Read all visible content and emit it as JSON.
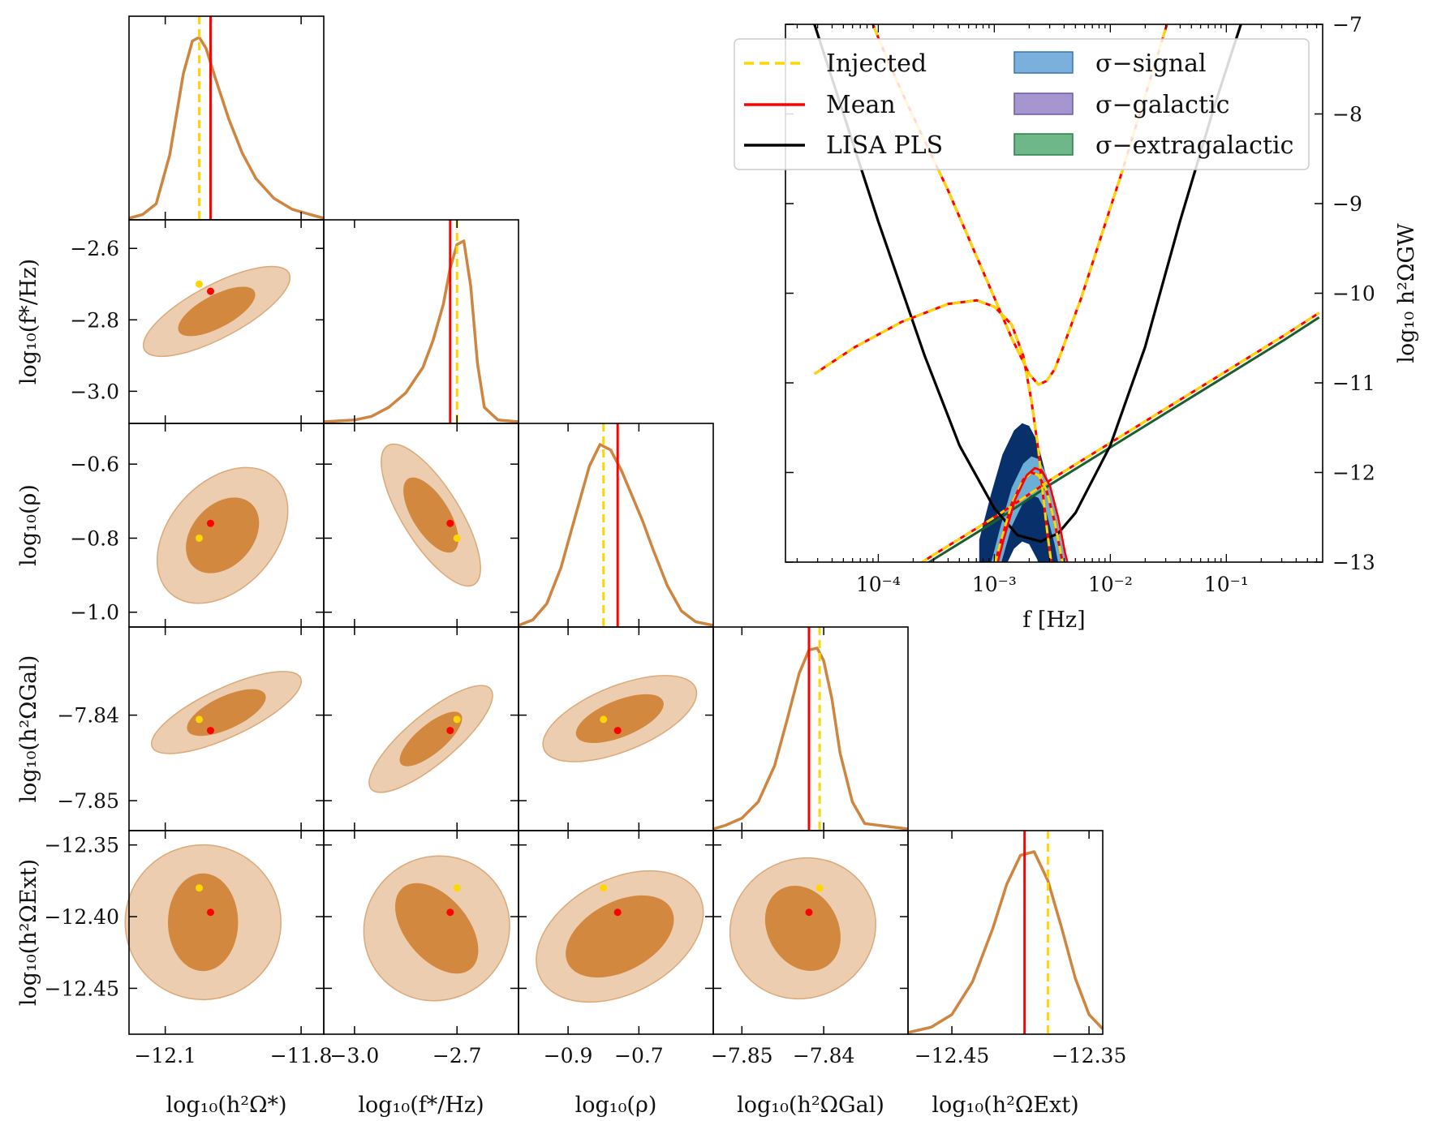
{
  "chart_data": [
    {
      "type": "corner",
      "title": "",
      "parameters": [
        {
          "key": "omega_star",
          "label": "log₁₀(h²Ω*)",
          "range": [
            -12.18,
            -11.75
          ],
          "ticks": [
            -12.1,
            -11.8
          ],
          "tick_labels": [
            "−12.1",
            "−11.8"
          ],
          "injected": -12.025,
          "mean": -12.0
        },
        {
          "key": "f_star",
          "label": "log₁₀(f*/Hz)",
          "range": [
            -3.09,
            -2.52
          ],
          "ticks": [
            -3.0,
            -2.7
          ],
          "tick_labels": [
            "−3.0",
            "−2.7"
          ],
          "y_ticks": [
            -2.6,
            -2.8,
            -3.0
          ],
          "y_tick_labels": [
            "−2.6",
            "−2.8",
            "−3.0"
          ],
          "injected": -2.7,
          "mean": -2.72
        },
        {
          "key": "rho",
          "label": "log₁₀(ρ)",
          "range": [
            -1.04,
            -0.49
          ],
          "ticks": [
            -0.9,
            -0.7
          ],
          "tick_labels": [
            "−0.9",
            "−0.7"
          ],
          "y_ticks": [
            -0.6,
            -0.8,
            -1.0
          ],
          "y_tick_labels": [
            "−0.6",
            "−0.8",
            "−1.0"
          ],
          "injected": -0.8,
          "mean": -0.76
        },
        {
          "key": "omega_gal",
          "label": "log₁₀(h²ΩGal)",
          "range": [
            -7.8535,
            -7.8297
          ],
          "ticks": [
            -7.85,
            -7.84
          ],
          "tick_labels": [
            "−7.85",
            "−7.84"
          ],
          "y_ticks": [
            -7.84,
            -7.85
          ],
          "y_tick_labels": [
            "−7.84",
            "−7.85"
          ],
          "injected": -7.8405,
          "mean": -7.8418
        },
        {
          "key": "omega_ext",
          "label": "log₁₀(h²ΩExt)",
          "range": [
            -12.482,
            -12.34
          ],
          "ticks": [
            -12.45,
            -12.35
          ],
          "tick_labels": [
            "−12.45",
            "−12.35"
          ],
          "y_ticks": [
            -12.35,
            -12.4,
            -12.45
          ],
          "y_tick_labels": [
            "−12.35",
            "−12.40",
            "−12.45"
          ],
          "injected": -12.38,
          "mean": -12.397
        }
      ],
      "marginals": [
        {
          "x": [
            -12.18,
            -12.15,
            -12.12,
            -12.09,
            -12.06,
            -12.04,
            -12.025,
            -12.01,
            -11.99,
            -11.96,
            -11.93,
            -11.9,
            -11.86,
            -11.82,
            -11.78,
            -11.75
          ],
          "density": [
            0.0,
            0.02,
            0.08,
            0.35,
            0.8,
            0.98,
            1.0,
            0.94,
            0.78,
            0.55,
            0.36,
            0.22,
            0.11,
            0.05,
            0.02,
            0.0
          ]
        },
        {
          "x": [
            -3.09,
            -3.0,
            -2.95,
            -2.9,
            -2.85,
            -2.8,
            -2.77,
            -2.74,
            -2.72,
            -2.7,
            -2.68,
            -2.66,
            -2.64,
            -2.62,
            -2.58,
            -2.52
          ],
          "density": [
            0.0,
            0.01,
            0.03,
            0.08,
            0.16,
            0.3,
            0.45,
            0.65,
            0.85,
            0.98,
            1.0,
            0.75,
            0.32,
            0.08,
            0.01,
            0.0
          ]
        },
        {
          "x": [
            -1.04,
            -1.0,
            -0.96,
            -0.92,
            -0.88,
            -0.84,
            -0.81,
            -0.78,
            -0.75,
            -0.72,
            -0.69,
            -0.66,
            -0.62,
            -0.58,
            -0.54,
            -0.49
          ],
          "density": [
            0.0,
            0.03,
            0.12,
            0.32,
            0.6,
            0.88,
            1.0,
            0.97,
            0.86,
            0.72,
            0.58,
            0.42,
            0.22,
            0.08,
            0.02,
            0.0
          ]
        },
        {
          "x": [
            -7.8535,
            -7.852,
            -7.85,
            -7.848,
            -7.846,
            -7.8445,
            -7.843,
            -7.8418,
            -7.8408,
            -7.84,
            -7.839,
            -7.838,
            -7.8365,
            -7.835,
            -7.8297
          ],
          "density": [
            0.0,
            0.02,
            0.06,
            0.15,
            0.35,
            0.6,
            0.86,
            0.99,
            1.0,
            0.93,
            0.72,
            0.42,
            0.15,
            0.03,
            0.0
          ]
        },
        {
          "x": [
            -12.482,
            -12.465,
            -12.45,
            -12.435,
            -12.42,
            -12.41,
            -12.4,
            -12.39,
            -12.38,
            -12.37,
            -12.36,
            -12.35,
            -12.34
          ],
          "density": [
            0.0,
            0.03,
            0.1,
            0.28,
            0.58,
            0.82,
            0.98,
            1.0,
            0.84,
            0.58,
            0.3,
            0.1,
            0.02
          ]
        }
      ]
    },
    {
      "type": "line",
      "title": "",
      "xlabel": "f [Hz]",
      "ylabel": "log₁₀ h²ΩGW",
      "xscale": "log",
      "xlim_log10": [
        -4.8,
        -0.17
      ],
      "ylim": [
        -13,
        -7
      ],
      "x_ticks_log10": [
        -4,
        -3,
        -2,
        -1
      ],
      "x_tick_labels": [
        "10⁻⁴",
        "10⁻³",
        "10⁻²",
        "10⁻¹"
      ],
      "y_ticks": [
        -7,
        -8,
        -9,
        -10,
        -11,
        -12,
        -13
      ],
      "y_tick_labels": [
        "−7",
        "−8",
        "−9",
        "−10",
        "−11",
        "−12",
        "−13"
      ],
      "legend_position": "top-right",
      "series": [
        {
          "name": "Injected",
          "style": "dashed",
          "color": "#FFD700"
        },
        {
          "name": "Mean",
          "style": "solid",
          "color": "#FF0000"
        },
        {
          "name": "LISA PLS",
          "style": "solid",
          "color": "#000000",
          "x_log10": [
            -4.8,
            -4.4,
            -4.0,
            -3.6,
            -3.3,
            -3.0,
            -2.8,
            -2.6,
            -2.45,
            -2.3,
            -2.0,
            -1.7,
            -1.4,
            -1.1,
            -0.85
          ],
          "y": [
            -6.0,
            -7.6,
            -9.2,
            -10.7,
            -11.7,
            -12.4,
            -12.7,
            -12.77,
            -12.68,
            -12.45,
            -11.7,
            -10.6,
            -9.2,
            -7.9,
            -6.9
          ]
        },
        {
          "name": "σ−signal",
          "style": "band",
          "color": "#5a9bd3"
        },
        {
          "name": "σ−galactic",
          "style": "band",
          "color": "#8e7cc3"
        },
        {
          "name": "σ−extragalactic",
          "style": "band",
          "color": "#4aa56a"
        }
      ],
      "curves": {
        "total_x_log10": [
          -4.2,
          -4.0,
          -3.8,
          -3.6,
          -3.4,
          -3.2,
          -3.0,
          -2.85,
          -2.7,
          -2.62,
          -2.55,
          -2.48,
          -2.42,
          -2.35,
          -2.25,
          -2.1,
          -1.9,
          -1.7,
          -1.5,
          -1.3,
          -1.1
        ],
        "total_y": [
          -6.5,
          -7.15,
          -7.75,
          -8.3,
          -8.85,
          -9.45,
          -10.05,
          -10.5,
          -10.9,
          -11.02,
          -10.98,
          -10.85,
          -10.65,
          -10.4,
          -10.05,
          -9.45,
          -8.65,
          -7.8,
          -6.95,
          -6.05,
          -5.2
        ],
        "galactic_x_log10": [
          -4.55,
          -4.2,
          -3.8,
          -3.4,
          -3.15,
          -3.0,
          -2.85,
          -2.75,
          -2.68,
          -2.62,
          -2.58,
          -2.54,
          -2.5,
          -2.47
        ],
        "galactic_y": [
          -10.9,
          -10.6,
          -10.32,
          -10.12,
          -10.08,
          -10.15,
          -10.35,
          -10.7,
          -11.2,
          -11.75,
          -12.25,
          -12.7,
          -13.1,
          -13.5
        ],
        "extragalactic_x_log10": [
          -4.3,
          -3.5,
          -3.0,
          -2.5,
          -2.0,
          -1.5,
          -1.0,
          -0.5,
          -0.2
        ],
        "extragalactic_y": [
          -13.55,
          -12.9,
          -12.5,
          -12.07,
          -11.67,
          -11.27,
          -10.87,
          -10.47,
          -10.22
        ],
        "signal_x_log10": [
          -3.05,
          -2.95,
          -2.85,
          -2.75,
          -2.68,
          -2.62,
          -2.55,
          -2.48,
          -2.42,
          -2.37,
          -2.34
        ],
        "signal_y": [
          -13.3,
          -12.8,
          -12.35,
          -12.08,
          -12.0,
          -12.03,
          -12.2,
          -12.55,
          -12.95,
          -13.2,
          -13.4
        ]
      }
    }
  ],
  "legend": {
    "injected": "Injected",
    "mean": "Mean",
    "lisa_pls": "LISA PLS",
    "sigma_signal": "σ−signal",
    "sigma_galactic": "σ−galactic",
    "sigma_extragalactic": "σ−extragalactic"
  },
  "colors": {
    "injected": "#FFD700",
    "mean": "#FF0000",
    "posterior": "#CD853F",
    "contour_outer": "#EDCDB0",
    "contour_inner": "#D2883F",
    "lisa": "#000000",
    "signal_band_outer": "#08306B",
    "signal_band_inner": "#6BAED6"
  }
}
